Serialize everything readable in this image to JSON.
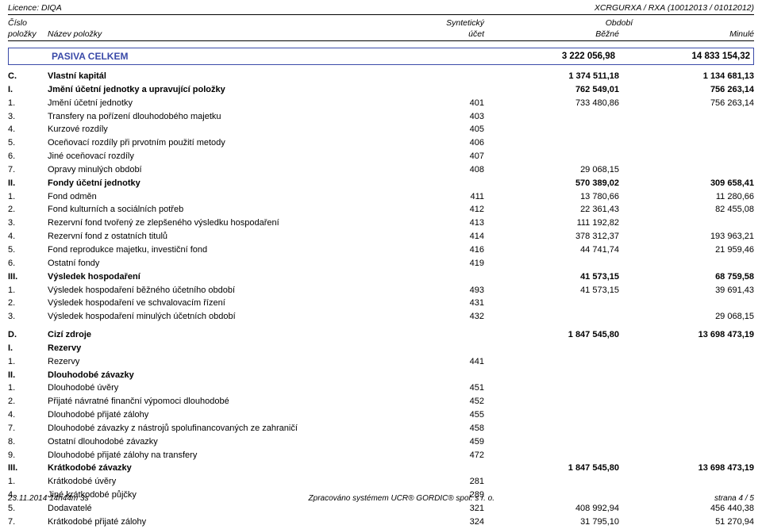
{
  "header": {
    "licence": "Licence: DIQA",
    "code": "XCRGURXA / RXA (10012013 / 01012012)",
    "cislo": "Číslo",
    "syntet": "Syntetický",
    "obdobi": "Období",
    "polozky": "položky",
    "nazev": "Název položky",
    "ucet": "účet",
    "bezne": "Běžné",
    "minule": "Minulé"
  },
  "main_box": {
    "title": "PASIVA CELKEM",
    "v1": "3 222 056,98",
    "v2": "14 833 154,32"
  },
  "rows": [
    {
      "n": "C.",
      "name": "Vlastní kapitál",
      "u": "",
      "v1": "1 374 511,18",
      "v2": "1 134 681,13",
      "b": true
    },
    {
      "n": "I.",
      "name": "Jmění účetní jednotky a upravující položky",
      "u": "",
      "v1": "762 549,01",
      "v2": "756 263,14",
      "b": true
    },
    {
      "n": "1.",
      "name": "Jmění účetní jednotky",
      "u": "401",
      "v1": "733 480,86",
      "v2": "756 263,14"
    },
    {
      "n": "3.",
      "name": "Transfery na pořízení dlouhodobého majetku",
      "u": "403",
      "v1": "",
      "v2": ""
    },
    {
      "n": "4.",
      "name": "Kurzové rozdíly",
      "u": "405",
      "v1": "",
      "v2": ""
    },
    {
      "n": "5.",
      "name": "Oceňovací rozdíly při prvotním použití metody",
      "u": "406",
      "v1": "",
      "v2": ""
    },
    {
      "n": "6.",
      "name": "Jiné oceňovací rozdíly",
      "u": "407",
      "v1": "",
      "v2": ""
    },
    {
      "n": "7.",
      "name": "Opravy minulých období",
      "u": "408",
      "v1": "29 068,15",
      "v2": ""
    },
    {
      "n": "II.",
      "name": "Fondy účetní jednotky",
      "u": "",
      "v1": "570 389,02",
      "v2": "309 658,41",
      "b": true
    },
    {
      "n": "1.",
      "name": "Fond odměn",
      "u": "411",
      "v1": "13 780,66",
      "v2": "11 280,66"
    },
    {
      "n": "2.",
      "name": "Fond kulturních a sociálních potřeb",
      "u": "412",
      "v1": "22 361,43",
      "v2": "82 455,08"
    },
    {
      "n": "3.",
      "name": "Rezervní fond tvořený ze zlepšeného výsledku hospodaření",
      "u": "413",
      "v1": "111 192,82",
      "v2": ""
    },
    {
      "n": "4.",
      "name": "Rezervní fond z ostatních titulů",
      "u": "414",
      "v1": "378 312,37",
      "v2": "193 963,21"
    },
    {
      "n": "5.",
      "name": "Fond reprodukce majetku, investiční fond",
      "u": "416",
      "v1": "44 741,74",
      "v2": "21 959,46"
    },
    {
      "n": "6.",
      "name": "Ostatní fondy",
      "u": "419",
      "v1": "",
      "v2": ""
    },
    {
      "n": "III.",
      "name": "Výsledek hospodaření",
      "u": "",
      "v1": "41 573,15",
      "v2": "68 759,58",
      "b": true
    },
    {
      "n": "1.",
      "name": "Výsledek hospodaření běžného účetního období",
      "u": "493",
      "v1": "41 573,15",
      "v2": "39 691,43"
    },
    {
      "n": "2.",
      "name": "Výsledek hospodaření ve schvalovacím řízení",
      "u": "431",
      "v1": "",
      "v2": ""
    },
    {
      "n": "3.",
      "name": "Výsledek hospodaření minulých účetních období",
      "u": "432",
      "v1": "",
      "v2": "29 068,15"
    }
  ],
  "rows2": [
    {
      "n": "D.",
      "name": "Cizí zdroje",
      "u": "",
      "v1": "1 847 545,80",
      "v2": "13 698 473,19",
      "b": true
    },
    {
      "n": "I.",
      "name": "Rezervy",
      "u": "",
      "v1": "",
      "v2": "",
      "b": true
    },
    {
      "n": "1.",
      "name": "Rezervy",
      "u": "441",
      "v1": "",
      "v2": ""
    },
    {
      "n": "II.",
      "name": "Dlouhodobé závazky",
      "u": "",
      "v1": "",
      "v2": "",
      "b": true
    },
    {
      "n": "1.",
      "name": "Dlouhodobé úvěry",
      "u": "451",
      "v1": "",
      "v2": ""
    },
    {
      "n": "2.",
      "name": "Přijaté návratné finanční výpomoci dlouhodobé",
      "u": "452",
      "v1": "",
      "v2": ""
    },
    {
      "n": "4.",
      "name": "Dlouhodobé přijaté zálohy",
      "u": "455",
      "v1": "",
      "v2": ""
    },
    {
      "n": "7.",
      "name": "Dlouhodobé závazky z nástrojů spolufinancovaných ze zahraničí",
      "u": "458",
      "v1": "",
      "v2": ""
    },
    {
      "n": "8.",
      "name": "Ostatní dlouhodobé závazky",
      "u": "459",
      "v1": "",
      "v2": ""
    },
    {
      "n": "9.",
      "name": "Dlouhodobé přijaté zálohy na transfery",
      "u": "472",
      "v1": "",
      "v2": ""
    },
    {
      "n": "III.",
      "name": "Krátkodobé závazky",
      "u": "",
      "v1": "1 847 545,80",
      "v2": "13 698 473,19",
      "b": true
    },
    {
      "n": "1.",
      "name": "Krátkodobé úvěry",
      "u": "281",
      "v1": "",
      "v2": ""
    },
    {
      "n": "4.",
      "name": "Jiné krátkodobé půjčky",
      "u": "289",
      "v1": "",
      "v2": ""
    },
    {
      "n": "5.",
      "name": "Dodavatelé",
      "u": "321",
      "v1": "408 992,94",
      "v2": "456 440,38"
    },
    {
      "n": "7.",
      "name": "Krátkodobé přijaté zálohy",
      "u": "324",
      "v1": "31 795,10",
      "v2": "51 270,94"
    }
  ],
  "footer": {
    "left": "23.11.2014 14h44m 3s",
    "center": "Zpracováno systémem UCR® GORDIC® spol. s r. o.",
    "right": "strana 4 / 5"
  }
}
